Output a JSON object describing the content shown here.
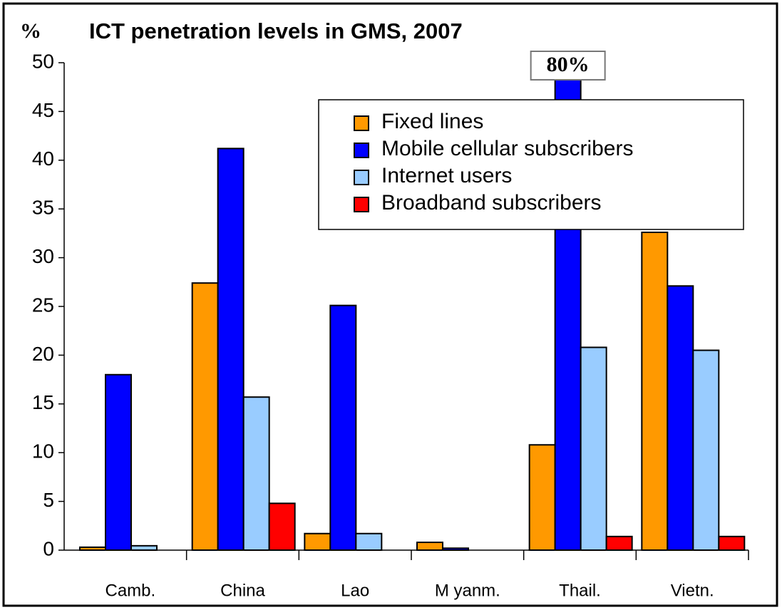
{
  "chart_data": {
    "type": "bar",
    "title": "ICT penetration levels in GMS, 2007",
    "y_label": "%",
    "categories": [
      "Camb.",
      "China",
      "Lao",
      "M yanm.",
      "Thail.",
      "Vietn."
    ],
    "series": [
      {
        "name": "Fixed lines",
        "color": "#ff9900",
        "values": [
          0.3,
          27.4,
          1.7,
          0.8,
          10.8,
          32.6
        ]
      },
      {
        "name": "Mobile cellular subscribers",
        "color": "#0000ff",
        "values": [
          18.0,
          41.2,
          25.1,
          0.2,
          80,
          27.1
        ],
        "value_labels": [
          null,
          null,
          null,
          null,
          "80%",
          null
        ]
      },
      {
        "name": "Internet users",
        "color": "#99ccff",
        "values": [
          0.45,
          15.7,
          1.7,
          0,
          20.8,
          20.5
        ]
      },
      {
        "name": "Broadband subscribers",
        "color": "#ff0000",
        "values": [
          0,
          4.8,
          0,
          0,
          1.4,
          1.4
        ]
      }
    ],
    "ylim": [
      0,
      50
    ],
    "yticks": [
      0,
      5,
      10,
      15,
      20,
      25,
      30,
      35,
      40,
      45,
      50
    ],
    "grid": false,
    "legend": "upper right"
  }
}
